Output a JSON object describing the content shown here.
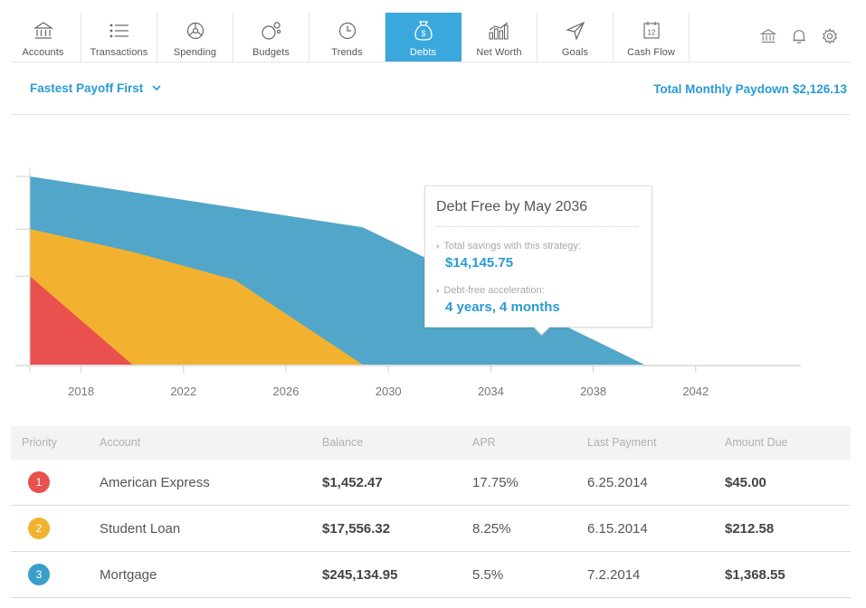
{
  "nav": {
    "items": [
      {
        "label": "Accounts",
        "icon": "bank-icon"
      },
      {
        "label": "Transactions",
        "icon": "list-icon"
      },
      {
        "label": "Spending",
        "icon": "steering-icon"
      },
      {
        "label": "Budgets",
        "icon": "bubbles-icon"
      },
      {
        "label": "Trends",
        "icon": "clock-icon"
      },
      {
        "label": "Debts",
        "icon": "money-bag-icon",
        "active": true
      },
      {
        "label": "Net Worth",
        "icon": "bar-chart-icon"
      },
      {
        "label": "Goals",
        "icon": "paper-plane-icon"
      },
      {
        "label": "Cash Flow",
        "icon": "calendar-icon",
        "calendar_day": "12"
      }
    ],
    "utility_icons": [
      "bank-icon",
      "bell-icon",
      "gear-icon"
    ],
    "active_color": "#3aa8dc"
  },
  "subheader": {
    "strategy_label": "Fastest Payoff First",
    "paydown_label": "Total Monthly Paydown",
    "paydown_amount": "$2,126.13"
  },
  "chart_data": {
    "type": "area",
    "title": "",
    "xlabel": "",
    "ylabel": "",
    "x_ticks": [
      "2018",
      "2022",
      "2026",
      "2030",
      "2034",
      "2038",
      "2042"
    ],
    "xlim": [
      2016,
      2044
    ],
    "series": [
      {
        "color": "#52a6c9",
        "points": [
          [
            2016,
            100
          ],
          [
            2029,
            73
          ],
          [
            2040,
            0
          ]
        ]
      },
      {
        "color": "#f2b22f",
        "points": [
          [
            2016,
            72
          ],
          [
            2020,
            60
          ],
          [
            2024,
            45
          ],
          [
            2029,
            0
          ]
        ]
      },
      {
        "color": "#e9504e",
        "points": [
          [
            2016,
            47
          ],
          [
            2020,
            0
          ]
        ]
      }
    ],
    "y_ticks_unlabeled": 4
  },
  "tooltip": {
    "title": "Debt Free by May 2036",
    "savings_label": "Total savings with this strategy:",
    "savings_value": "$14,145.75",
    "accel_label": "Debt-free acceleration:",
    "accel_value": "4 years, 4 months"
  },
  "table": {
    "headers": {
      "priority": "Priority",
      "account": "Account",
      "balance": "Balance",
      "apr": "APR",
      "last_payment": "Last Payment",
      "amount_due": "Amount Due"
    },
    "rows": [
      {
        "priority": "1",
        "color": "#e9504e",
        "account": "American Express",
        "balance": "$1,452.47",
        "apr": "17.75%",
        "last_payment": "6.25.2014",
        "amount_due": "$45.00"
      },
      {
        "priority": "2",
        "color": "#f2b22f",
        "account": "Student Loan",
        "balance": "$17,556.32",
        "apr": "8.25%",
        "last_payment": "6.15.2014",
        "amount_due": "$212.58"
      },
      {
        "priority": "3",
        "color": "#3a9fc9",
        "account": "Mortgage",
        "balance": "$245,134.95",
        "apr": "5.5%",
        "last_payment": "7.2.2014",
        "amount_due": "$1,368.55"
      }
    ]
  }
}
